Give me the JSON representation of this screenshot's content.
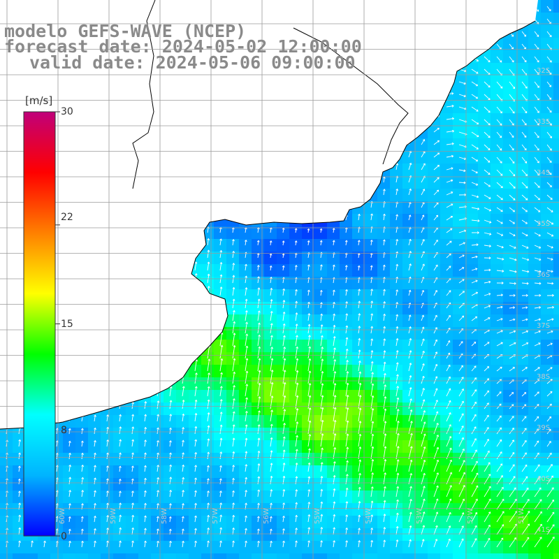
{
  "titles": {
    "line1": "modelo GEFS-WAVE (NCEP)",
    "line2": "forecast date: 2024-05-02 12:00:00",
    "line3": "valid date: 2024-05-06 09:00:00"
  },
  "colorbar": {
    "unit": "[m/s]",
    "ticks": [
      {
        "label": "30",
        "value": 30
      },
      {
        "label": "22",
        "value": 22
      },
      {
        "label": "15",
        "value": 15
      },
      {
        "label": "8",
        "value": 8
      },
      {
        "label": "0",
        "value": 0
      }
    ],
    "colors": [
      "#0000ff",
      "#00b4ff",
      "#00ffff",
      "#00ff00",
      "#ffff00",
      "#ff8000",
      "#ff0000",
      "#c0007a"
    ]
  },
  "map": {
    "field": "wind speed (m/s)",
    "land_color": "#ffffff",
    "coast_color": "#000000",
    "grid_color": "#9a9a9a",
    "arrow_color": "#ffffff",
    "lat_labels": [
      "32S",
      "33S",
      "34S",
      "35S",
      "36S",
      "37S",
      "38S",
      "39S",
      "40S",
      "41S"
    ],
    "lon_labels": [
      "60W",
      "59W",
      "58W",
      "57W",
      "56W",
      "55W",
      "54W",
      "53W",
      "52W",
      "51W"
    ]
  }
}
